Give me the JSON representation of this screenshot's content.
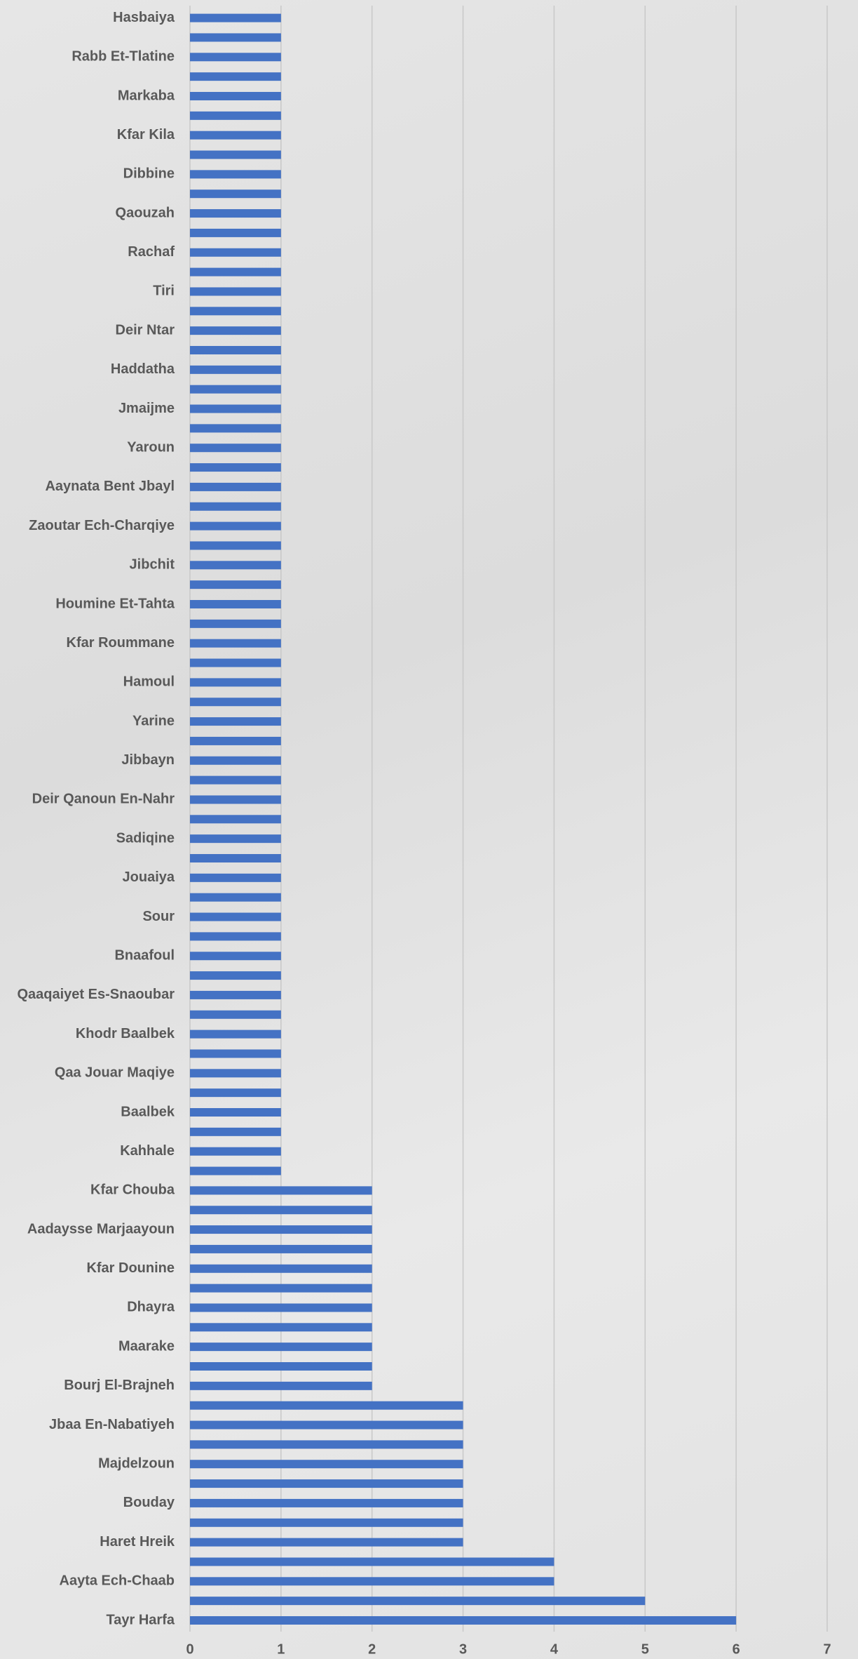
{
  "chart_data": {
    "type": "bar",
    "orientation": "horizontal",
    "color": "#4472c4",
    "grid": true,
    "categories": [
      "Tayr Harfa",
      null,
      "Aayta Ech-Chaab",
      null,
      "Haret Hreik",
      null,
      "Bouday",
      null,
      "Majdelzoun",
      null,
      "Jbaa En-Nabatiyeh",
      null,
      "Bourj El-Brajneh",
      null,
      "Maarake",
      null,
      "Dhayra",
      null,
      "Kfar Dounine",
      null,
      "Aadaysse Marjaayoun",
      null,
      "Kfar Chouba",
      null,
      "Kahhale",
      null,
      "Baalbek",
      null,
      "Qaa Jouar Maqiye",
      null,
      "Khodr Baalbek",
      null,
      "Qaaqaiyet Es-Snaoubar",
      null,
      "Bnaafoul",
      null,
      "Sour",
      null,
      "Jouaiya",
      null,
      "Sadiqine",
      null,
      "Deir Qanoun En-Nahr",
      null,
      "Jibbayn",
      null,
      "Yarine",
      null,
      "Hamoul",
      null,
      "Kfar Roummane",
      null,
      "Houmine Et-Tahta",
      null,
      "Jibchit",
      null,
      "Zaoutar Ech-Charqiye",
      null,
      "Aaynata Bent Jbayl",
      null,
      "Yaroun",
      null,
      "Jmaijme",
      null,
      "Haddatha",
      null,
      "Deir Ntar",
      null,
      "Tiri",
      null,
      "Rachaf",
      null,
      "Qaouzah",
      null,
      "Dibbine",
      null,
      "Kfar Kila",
      null,
      "Markaba",
      null,
      "Rabb Et-Tlatine",
      null,
      "Hasbaiya"
    ],
    "values": [
      6,
      5,
      4,
      4,
      3,
      3,
      3,
      3,
      3,
      3,
      3,
      3,
      2,
      2,
      2,
      2,
      2,
      2,
      2,
      2,
      2,
      2,
      2,
      1,
      1,
      1,
      1,
      1,
      1,
      1,
      1,
      1,
      1,
      1,
      1,
      1,
      1,
      1,
      1,
      1,
      1,
      1,
      1,
      1,
      1,
      1,
      1,
      1,
      1,
      1,
      1,
      1,
      1,
      1,
      1,
      1,
      1,
      1,
      1,
      1,
      1,
      1,
      1,
      1,
      1,
      1,
      1,
      1,
      1,
      1,
      1,
      1,
      1,
      1,
      1,
      1,
      1,
      1,
      1,
      1,
      1,
      1,
      1
    ],
    "xlim": [
      0,
      7
    ],
    "xticks": [
      0,
      1,
      2,
      3,
      4,
      5,
      6,
      7
    ]
  }
}
